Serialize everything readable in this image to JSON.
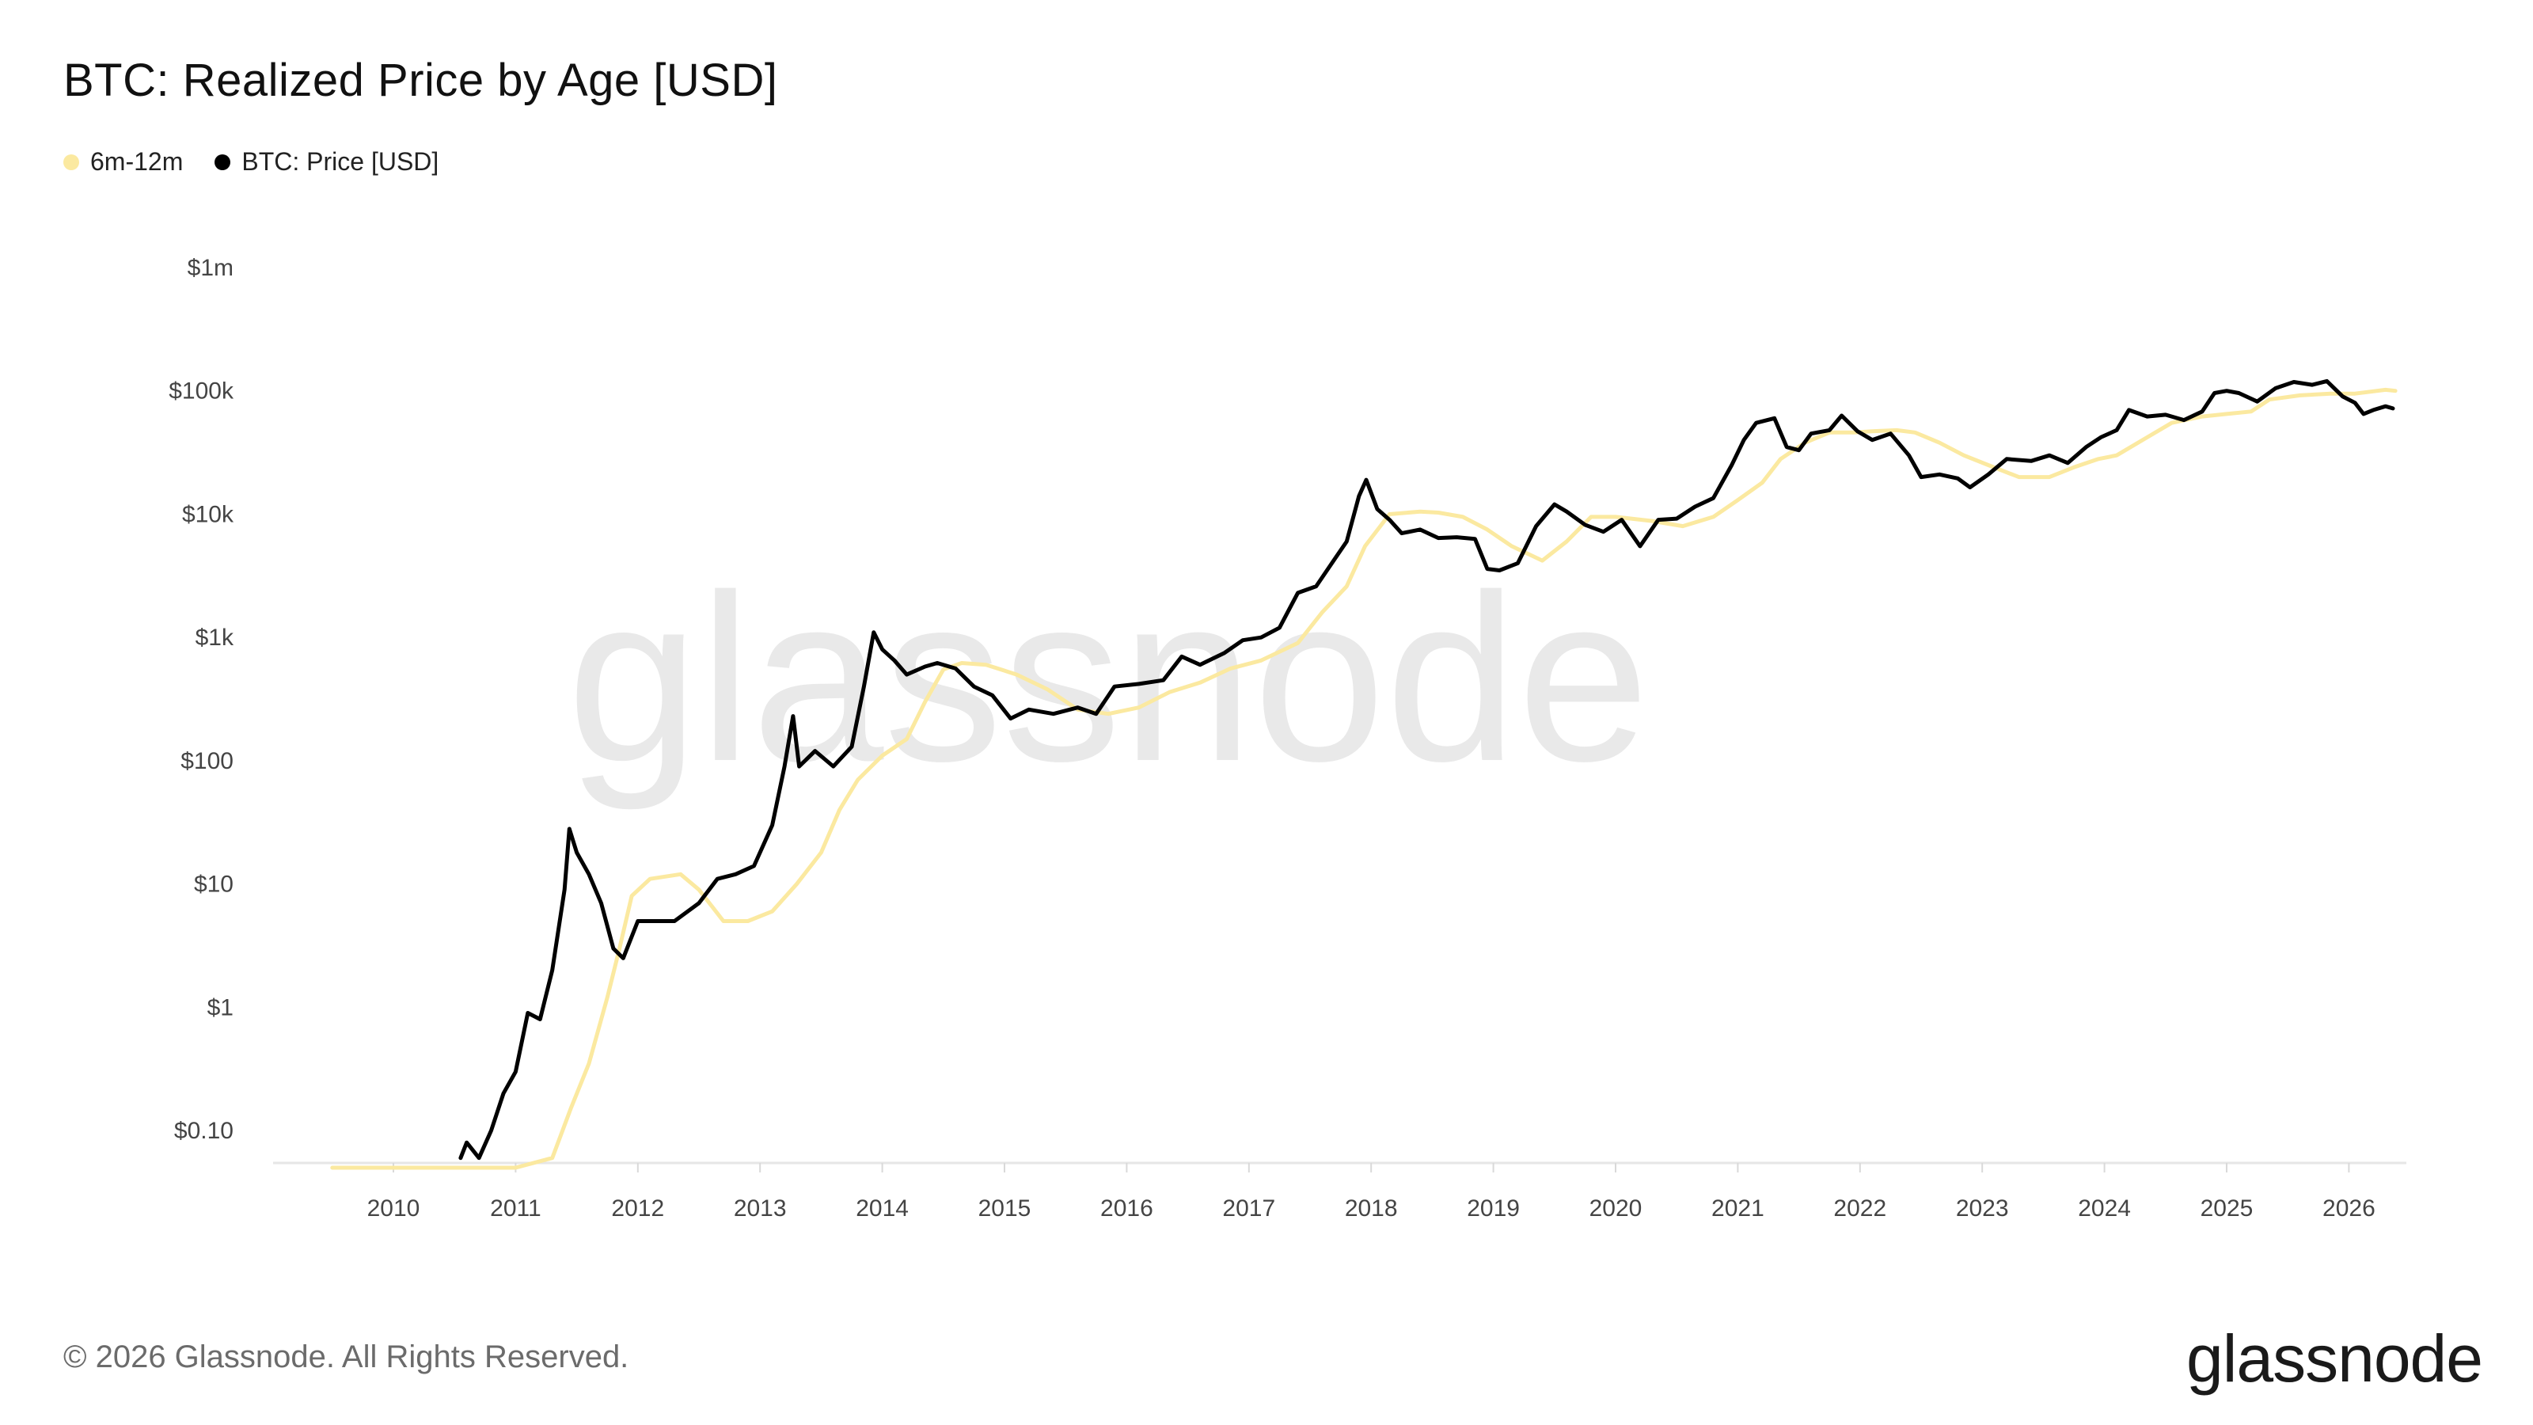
{
  "title": "BTC: Realized Price by Age [USD]",
  "legend": [
    {
      "label": "6m-12m",
      "color": "#fbe9a0"
    },
    {
      "label": "BTC: Price [USD]",
      "color": "#000000"
    }
  ],
  "footer": "© 2026 Glassnode. All Rights Reserved.",
  "brand": "glassnode",
  "watermark": "glassnode",
  "chart_data": {
    "type": "line",
    "yscale": "log",
    "ylim": [
      0.05,
      1000000
    ],
    "xlim": [
      2009.5,
      2026.4
    ],
    "y_ticks": [
      {
        "v": 0.1,
        "label": "$0.10"
      },
      {
        "v": 1,
        "label": "$1"
      },
      {
        "v": 10,
        "label": "$10"
      },
      {
        "v": 100,
        "label": "$100"
      },
      {
        "v": 1000,
        "label": "$1k"
      },
      {
        "v": 10000,
        "label": "$10k"
      },
      {
        "v": 100000,
        "label": "$100k"
      },
      {
        "v": 1000000,
        "label": "$1m"
      }
    ],
    "x_ticks": [
      "2010",
      "2011",
      "2012",
      "2013",
      "2014",
      "2015",
      "2016",
      "2017",
      "2018",
      "2019",
      "2020",
      "2021",
      "2022",
      "2023",
      "2024",
      "2025",
      "2026"
    ],
    "series": [
      {
        "name": "6m-12m",
        "color": "#fbe9a0",
        "points": [
          [
            2009.5,
            0.05
          ],
          [
            2010.5,
            0.05
          ],
          [
            2011.0,
            0.05
          ],
          [
            2011.3,
            0.06
          ],
          [
            2011.45,
            0.15
          ],
          [
            2011.6,
            0.35
          ],
          [
            2011.75,
            1.2
          ],
          [
            2011.85,
            3
          ],
          [
            2011.95,
            8
          ],
          [
            2012.1,
            11
          ],
          [
            2012.35,
            12
          ],
          [
            2012.5,
            9
          ],
          [
            2012.7,
            5
          ],
          [
            2012.9,
            5
          ],
          [
            2013.1,
            6
          ],
          [
            2013.3,
            10
          ],
          [
            2013.5,
            18
          ],
          [
            2013.65,
            40
          ],
          [
            2013.8,
            70
          ],
          [
            2014.0,
            110
          ],
          [
            2014.2,
            150
          ],
          [
            2014.35,
            300
          ],
          [
            2014.5,
            550
          ],
          [
            2014.65,
            620
          ],
          [
            2014.85,
            600
          ],
          [
            2015.1,
            500
          ],
          [
            2015.35,
            380
          ],
          [
            2015.6,
            260
          ],
          [
            2015.85,
            240
          ],
          [
            2016.1,
            270
          ],
          [
            2016.35,
            360
          ],
          [
            2016.6,
            430
          ],
          [
            2016.85,
            560
          ],
          [
            2017.1,
            650
          ],
          [
            2017.4,
            900
          ],
          [
            2017.6,
            1600
          ],
          [
            2017.8,
            2600
          ],
          [
            2017.95,
            5500
          ],
          [
            2018.15,
            10000
          ],
          [
            2018.4,
            10500
          ],
          [
            2018.55,
            10300
          ],
          [
            2018.75,
            9500
          ],
          [
            2018.95,
            7500
          ],
          [
            2019.15,
            5500
          ],
          [
            2019.4,
            4200
          ],
          [
            2019.6,
            6000
          ],
          [
            2019.8,
            9500
          ],
          [
            2020.0,
            9500
          ],
          [
            2020.3,
            8800
          ],
          [
            2020.55,
            8000
          ],
          [
            2020.8,
            9500
          ],
          [
            2021.0,
            13000
          ],
          [
            2021.2,
            18000
          ],
          [
            2021.35,
            28000
          ],
          [
            2021.55,
            38000
          ],
          [
            2021.75,
            46000
          ],
          [
            2021.95,
            46000
          ],
          [
            2022.1,
            47000
          ],
          [
            2022.3,
            48000
          ],
          [
            2022.45,
            46000
          ],
          [
            2022.65,
            38000
          ],
          [
            2022.85,
            30000
          ],
          [
            2023.05,
            25000
          ],
          [
            2023.3,
            20000
          ],
          [
            2023.55,
            20000
          ],
          [
            2023.75,
            24000
          ],
          [
            2023.95,
            28000
          ],
          [
            2024.1,
            30000
          ],
          [
            2024.35,
            42000
          ],
          [
            2024.55,
            55000
          ],
          [
            2024.8,
            62000
          ],
          [
            2025.0,
            65000
          ],
          [
            2025.2,
            68000
          ],
          [
            2025.35,
            85000
          ],
          [
            2025.6,
            92000
          ],
          [
            2025.85,
            95000
          ],
          [
            2026.05,
            95000
          ],
          [
            2026.3,
            102000
          ],
          [
            2026.38,
            100000
          ]
        ]
      },
      {
        "name": "BTC: Price [USD]",
        "color": "#000000",
        "points": [
          [
            2010.55,
            0.06
          ],
          [
            2010.6,
            0.08
          ],
          [
            2010.7,
            0.06
          ],
          [
            2010.8,
            0.1
          ],
          [
            2010.9,
            0.2
          ],
          [
            2011.0,
            0.3
          ],
          [
            2011.1,
            0.9
          ],
          [
            2011.2,
            0.8
          ],
          [
            2011.3,
            2
          ],
          [
            2011.4,
            9
          ],
          [
            2011.44,
            28
          ],
          [
            2011.5,
            18
          ],
          [
            2011.6,
            12
          ],
          [
            2011.7,
            7
          ],
          [
            2011.8,
            3
          ],
          [
            2011.88,
            2.5
          ],
          [
            2012.0,
            5
          ],
          [
            2012.15,
            5
          ],
          [
            2012.3,
            5
          ],
          [
            2012.5,
            7
          ],
          [
            2012.65,
            11
          ],
          [
            2012.8,
            12
          ],
          [
            2012.95,
            14
          ],
          [
            2013.1,
            30
          ],
          [
            2013.2,
            90
          ],
          [
            2013.27,
            230
          ],
          [
            2013.32,
            90
          ],
          [
            2013.45,
            120
          ],
          [
            2013.6,
            90
          ],
          [
            2013.75,
            130
          ],
          [
            2013.85,
            400
          ],
          [
            2013.93,
            1100
          ],
          [
            2014.0,
            800
          ],
          [
            2014.1,
            650
          ],
          [
            2014.2,
            500
          ],
          [
            2014.35,
            580
          ],
          [
            2014.45,
            620
          ],
          [
            2014.6,
            560
          ],
          [
            2014.75,
            400
          ],
          [
            2014.9,
            340
          ],
          [
            2015.05,
            220
          ],
          [
            2015.2,
            260
          ],
          [
            2015.4,
            240
          ],
          [
            2015.6,
            270
          ],
          [
            2015.75,
            240
          ],
          [
            2015.9,
            400
          ],
          [
            2016.1,
            420
          ],
          [
            2016.3,
            450
          ],
          [
            2016.45,
            700
          ],
          [
            2016.6,
            600
          ],
          [
            2016.8,
            750
          ],
          [
            2016.95,
            950
          ],
          [
            2017.1,
            1000
          ],
          [
            2017.25,
            1200
          ],
          [
            2017.4,
            2300
          ],
          [
            2017.55,
            2600
          ],
          [
            2017.7,
            4300
          ],
          [
            2017.8,
            6000
          ],
          [
            2017.9,
            14000
          ],
          [
            2017.96,
            19000
          ],
          [
            2018.05,
            11000
          ],
          [
            2018.15,
            9000
          ],
          [
            2018.25,
            7000
          ],
          [
            2018.4,
            7500
          ],
          [
            2018.55,
            6400
          ],
          [
            2018.7,
            6500
          ],
          [
            2018.85,
            6300
          ],
          [
            2018.95,
            3600
          ],
          [
            2019.05,
            3500
          ],
          [
            2019.2,
            4000
          ],
          [
            2019.35,
            8000
          ],
          [
            2019.5,
            12000
          ],
          [
            2019.6,
            10500
          ],
          [
            2019.75,
            8200
          ],
          [
            2019.9,
            7200
          ],
          [
            2020.05,
            9000
          ],
          [
            2020.2,
            5500
          ],
          [
            2020.35,
            9000
          ],
          [
            2020.5,
            9200
          ],
          [
            2020.65,
            11500
          ],
          [
            2020.8,
            13500
          ],
          [
            2020.95,
            25000
          ],
          [
            2021.05,
            40000
          ],
          [
            2021.15,
            55000
          ],
          [
            2021.3,
            60000
          ],
          [
            2021.4,
            35000
          ],
          [
            2021.5,
            33000
          ],
          [
            2021.6,
            45000
          ],
          [
            2021.75,
            48000
          ],
          [
            2021.85,
            63000
          ],
          [
            2021.98,
            47000
          ],
          [
            2022.1,
            40000
          ],
          [
            2022.25,
            45000
          ],
          [
            2022.4,
            30000
          ],
          [
            2022.5,
            20000
          ],
          [
            2022.65,
            21000
          ],
          [
            2022.8,
            19500
          ],
          [
            2022.9,
            16500
          ],
          [
            2023.05,
            21000
          ],
          [
            2023.2,
            28000
          ],
          [
            2023.4,
            27000
          ],
          [
            2023.55,
            30000
          ],
          [
            2023.7,
            26000
          ],
          [
            2023.85,
            35000
          ],
          [
            2023.97,
            42000
          ],
          [
            2024.1,
            48000
          ],
          [
            2024.2,
            70000
          ],
          [
            2024.35,
            62000
          ],
          [
            2024.5,
            64000
          ],
          [
            2024.65,
            58000
          ],
          [
            2024.8,
            68000
          ],
          [
            2024.9,
            96000
          ],
          [
            2025.0,
            100000
          ],
          [
            2025.1,
            96000
          ],
          [
            2025.25,
            82000
          ],
          [
            2025.4,
            105000
          ],
          [
            2025.55,
            118000
          ],
          [
            2025.7,
            112000
          ],
          [
            2025.82,
            120000
          ],
          [
            2025.95,
            90000
          ],
          [
            2026.05,
            80000
          ],
          [
            2026.12,
            65000
          ],
          [
            2026.2,
            70000
          ],
          [
            2026.3,
            75000
          ],
          [
            2026.36,
            72000
          ]
        ]
      }
    ]
  }
}
